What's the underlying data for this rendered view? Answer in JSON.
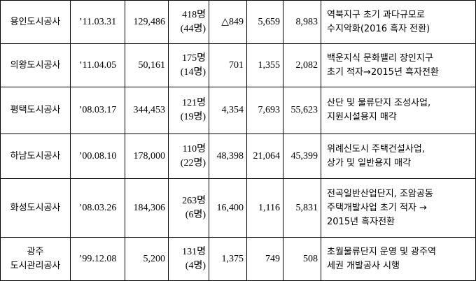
{
  "table": {
    "rows": [
      [
        [
          "용인도시공사"
        ],
        "’11.03.31",
        "129,486",
        [
          "418명",
          "(44명)"
        ],
        "△849",
        "5,659",
        "8,983",
        [
          "역북지구 초기 과다규모로",
          "수지악화(2016 흑자 전환)"
        ]
      ],
      [
        [
          "의왕도시공사"
        ],
        "’11.04.05",
        "50,161",
        [
          "175명",
          "(14명)"
        ],
        "701",
        "1,355",
        "2,082",
        [
          "백운지식 문화밸리 장인지구",
          "초기 적자→2015년 흑자전환"
        ]
      ],
      [
        [
          "평택도시공사"
        ],
        "’08.03.17",
        "344,453",
        [
          "121명",
          "(19명)"
        ],
        "4,354",
        "7,693",
        "55,623",
        [
          "산단 및 물류단지 조성사업,",
          "지원시설용지 매각"
        ]
      ],
      [
        [
          "하남도시공사"
        ],
        "’00.08.10",
        "178,000",
        [
          "110명",
          "(22명)"
        ],
        "48,398",
        "21,064",
        "45,399",
        [
          "위례신도시 주택건설사업,",
          "상가 및 일반용지 매각"
        ]
      ],
      [
        [
          "화성도시공사"
        ],
        "’08.03.26",
        "184,306",
        [
          "263명",
          "(6명)"
        ],
        "16,400",
        "1,116",
        "5,831",
        [
          "전곡일반산업단지, 조암공동",
          "주택개발사업 초기 적자 →",
          "2015년 흑자전환"
        ]
      ],
      [
        [
          "광주",
          "도시관리공사"
        ],
        "’99.12.08",
        "5,200",
        [
          "131명",
          "(4명)"
        ],
        "1,375",
        "749",
        "508",
        [
          "초월물류단지 운영 및 광주역",
          "세권 개발공사 시행"
        ]
      ]
    ]
  }
}
